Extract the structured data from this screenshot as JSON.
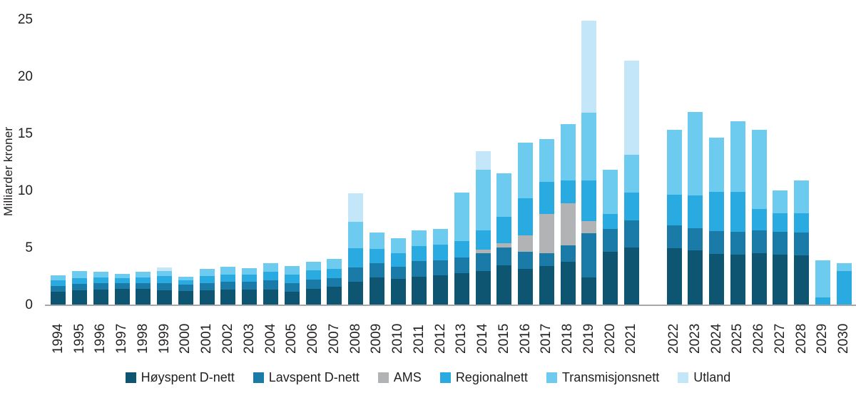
{
  "chart_data": {
    "type": "bar",
    "variant": "stacked",
    "title": "",
    "xlabel": "",
    "ylabel": "Milliarder kroner",
    "ylim": [
      0,
      25
    ],
    "yticks": [
      0,
      5,
      10,
      15,
      20,
      25
    ],
    "grid": false,
    "legend_position": "bottom",
    "gap_after_category": "2021",
    "categories": [
      "1994",
      "1995",
      "1996",
      "1997",
      "1998",
      "1999",
      "2000",
      "2001",
      "2002",
      "2003",
      "2004",
      "2005",
      "2006",
      "2007",
      "2008",
      "2009",
      "2010",
      "2011",
      "2012",
      "2013",
      "2014",
      "2015",
      "2016",
      "2017",
      "2018",
      "2019",
      "2020",
      "2021",
      "2022",
      "2023",
      "2024",
      "2025",
      "2026",
      "2027",
      "2028",
      "2029",
      "2030"
    ],
    "series": [
      {
        "name": "Høyspent D-nett",
        "color": "#0e5571",
        "values": [
          1.1,
          1.25,
          1.3,
          1.35,
          1.35,
          1.25,
          1.2,
          1.25,
          1.3,
          1.3,
          1.3,
          1.15,
          1.4,
          1.55,
          2.0,
          2.35,
          2.25,
          2.45,
          2.55,
          2.75,
          2.95,
          3.45,
          3.15,
          3.35,
          3.75,
          2.4,
          4.6,
          5.0,
          4.95,
          4.75,
          4.45,
          4.4,
          4.5,
          4.4,
          4.3,
          0,
          0
        ]
      },
      {
        "name": "Lavspent D-nett",
        "color": "#1a7aa8",
        "values": [
          0.5,
          0.55,
          0.55,
          0.55,
          0.55,
          0.65,
          0.55,
          0.65,
          0.7,
          0.7,
          0.8,
          0.75,
          0.8,
          0.75,
          1.25,
          1.3,
          1.05,
          1.35,
          1.35,
          1.35,
          1.55,
          1.55,
          1.45,
          1.15,
          1.45,
          3.85,
          2.0,
          2.4,
          2.0,
          1.95,
          2.0,
          2.0,
          2.0,
          2.0,
          2.0,
          0,
          0
        ]
      },
      {
        "name": "AMS",
        "color": "#b1b3b5",
        "values": [
          0,
          0,
          0,
          0,
          0,
          0,
          0,
          0,
          0,
          0,
          0,
          0,
          0,
          0,
          0,
          0,
          0,
          0,
          0,
          0,
          0.3,
          0.4,
          1.45,
          3.45,
          3.65,
          1.05,
          0,
          0,
          0,
          0,
          0,
          0,
          0,
          0,
          0,
          0,
          0
        ]
      },
      {
        "name": "Regionalnett",
        "color": "#29abe2",
        "values": [
          0.5,
          0.5,
          0.5,
          0.4,
          0.5,
          0.6,
          0.35,
          0.6,
          0.6,
          0.6,
          0.75,
          0.75,
          0.8,
          0.8,
          1.7,
          1.25,
          1.2,
          1.35,
          1.35,
          1.45,
          1.7,
          2.3,
          3.25,
          2.8,
          2.0,
          3.55,
          1.35,
          2.4,
          2.7,
          2.85,
          3.4,
          3.5,
          1.9,
          1.6,
          1.7,
          0.6,
          2.95
        ]
      },
      {
        "name": "Transmisjonsnett",
        "color": "#6dcbf0",
        "values": [
          0.45,
          0.65,
          0.5,
          0.4,
          0.5,
          0.45,
          0.35,
          0.6,
          0.7,
          0.6,
          0.8,
          0.7,
          0.75,
          0.9,
          2.3,
          1.4,
          1.3,
          1.35,
          1.4,
          4.25,
          5.3,
          3.8,
          4.9,
          3.75,
          4.95,
          5.95,
          3.85,
          3.3,
          5.65,
          7.35,
          4.75,
          6.15,
          6.9,
          2.0,
          2.9,
          3.3,
          0.7
        ]
      },
      {
        "name": "Utland",
        "color": "#c3e6f8",
        "values": [
          0,
          0,
          0,
          0,
          0,
          0.3,
          0,
          0,
          0,
          0,
          0,
          0,
          0,
          0,
          2.5,
          0,
          0,
          0,
          0,
          0,
          1.65,
          0,
          0,
          0,
          0,
          8.05,
          0,
          8.3,
          0,
          0,
          0,
          0,
          0,
          0,
          0,
          0,
          0
        ]
      }
    ]
  }
}
